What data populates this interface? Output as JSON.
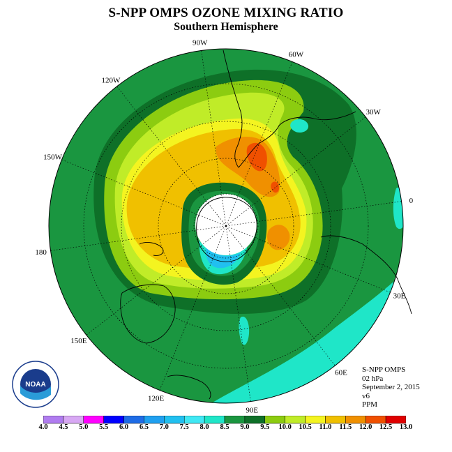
{
  "title": "S-NPP OMPS OZONE MIXING RATIO",
  "subtitle": "Southern Hemisphere",
  "longitude_labels": [
    "0",
    "30E",
    "60E",
    "90E",
    "120E",
    "150E",
    "180",
    "150W",
    "120W",
    "90W",
    "60W",
    "30W"
  ],
  "info": {
    "instrument": "S-NPP OMPS",
    "pressure": "02 hPa",
    "date": "September 2, 2015",
    "version": "v6",
    "units": "PPM"
  },
  "colorbar": {
    "ticks": [
      "4.0",
      "4.5",
      "5.0",
      "5.5",
      "6.0",
      "6.5",
      "7.0",
      "7.5",
      "8.0",
      "8.5",
      "9.0",
      "9.5",
      "10.0",
      "10.5",
      "11.0",
      "11.5",
      "12.0",
      "12.5",
      "13.0"
    ],
    "colors": [
      "#b07cf0",
      "#d8a8f4",
      "#ff00ff",
      "#0000ff",
      "#1e6ce6",
      "#1fa0f0",
      "#21c0f0",
      "#40e8f4",
      "#1fe6c8",
      "#1a9640",
      "#0e7028",
      "#8ccc10",
      "#c0ec28",
      "#f4f420",
      "#f0c000",
      "#f09000",
      "#f05000",
      "#e00000",
      "#8c5030"
    ]
  },
  "logo": {
    "text": "NOAA",
    "ring_text": "NATIONAL OCEANIC AND ATMOSPHERIC ADMINISTRATION · U.S. DEPARTMENT OF COMMERCE"
  },
  "map_style": {
    "background": "#1a9640",
    "pole_fill": "#ffffff"
  }
}
